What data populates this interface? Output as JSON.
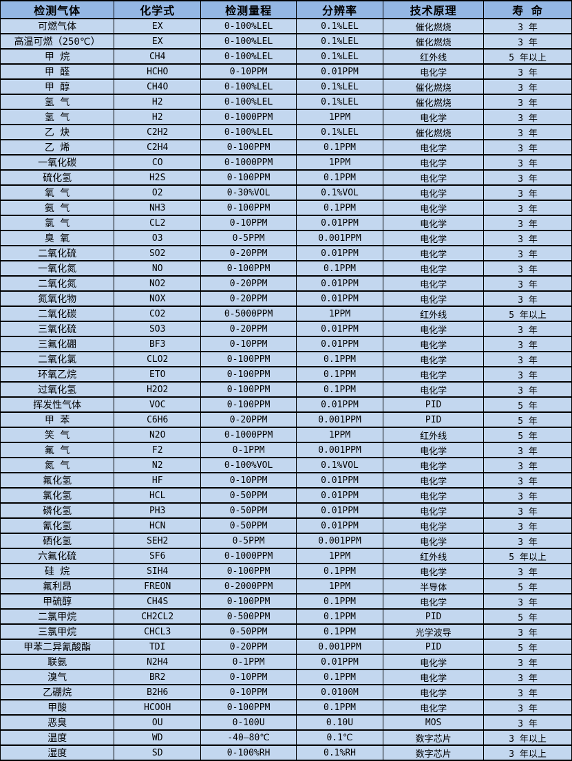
{
  "colors": {
    "header_bg": "#94b7e4",
    "row_bg": "#c3d7ef",
    "border": "#000000",
    "text": "#000000"
  },
  "table": {
    "headers": [
      "检测气体",
      "化学式",
      "检测量程",
      "分辨率",
      "技术原理",
      "寿 命"
    ],
    "rows": [
      [
        "可燃气体",
        "EX",
        "0-100%LEL",
        "0.1%LEL",
        "催化燃烧",
        "3 年"
      ],
      [
        "高温可燃（250℃）",
        "EX",
        "0-100%LEL",
        "0.1%LEL",
        "催化燃烧",
        "3 年"
      ],
      [
        "甲 烷",
        "CH4",
        "0-100%LEL",
        "0.1%LEL",
        "红外线",
        "5 年以上"
      ],
      [
        "甲 醛",
        "HCHO",
        "0-10PPM",
        "0.01PPM",
        "电化学",
        "3 年"
      ],
      [
        "甲 醇",
        "CH4O",
        "0-100%LEL",
        "0.1%LEL",
        "催化燃烧",
        "3 年"
      ],
      [
        "氢 气",
        "H2",
        "0-100%LEL",
        "0.1%LEL",
        "催化燃烧",
        "3 年"
      ],
      [
        "氢 气",
        "H2",
        "0-1000PPM",
        "1PPM",
        "电化学",
        "3 年"
      ],
      [
        "乙 炔",
        "C2H2",
        "0-100%LEL",
        "0.1%LEL",
        "催化燃烧",
        "3 年"
      ],
      [
        "乙 烯",
        "C2H4",
        "0-100PPM",
        "0.1PPM",
        "电化学",
        "3 年"
      ],
      [
        "一氧化碳",
        "CO",
        "0-1000PPM",
        "1PPM",
        "电化学",
        "3 年"
      ],
      [
        "硫化氢",
        "H2S",
        "0-100PPM",
        "0.1PPM",
        "电化学",
        "3 年"
      ],
      [
        "氧 气",
        "O2",
        "0-30%VOL",
        "0.1%VOL",
        "电化学",
        "3 年"
      ],
      [
        "氨 气",
        "NH3",
        "0-100PPM",
        "0.1PPM",
        "电化学",
        "3 年"
      ],
      [
        "氯 气",
        "CL2",
        "0-10PPM",
        "0.01PPM",
        "电化学",
        "3 年"
      ],
      [
        "臭 氧",
        "O3",
        "0-5PPM",
        "0.001PPM",
        "电化学",
        "3 年"
      ],
      [
        "二氧化硫",
        "SO2",
        "0-20PPM",
        "0.01PPM",
        "电化学",
        "3 年"
      ],
      [
        "一氧化氮",
        "NO",
        "0-100PPM",
        "0.1PPM",
        "电化学",
        "3 年"
      ],
      [
        "二氧化氮",
        "NO2",
        "0-20PPM",
        "0.01PPM",
        "电化学",
        "3 年"
      ],
      [
        "氮氧化物",
        "NOX",
        "0-20PPM",
        "0.01PPM",
        "电化学",
        "3 年"
      ],
      [
        "二氧化碳",
        "CO2",
        "0-5000PPM",
        "1PPM",
        "红外线",
        "5 年以上"
      ],
      [
        "三氧化硫",
        "SO3",
        "0-20PPM",
        "0.01PPM",
        "电化学",
        "3 年"
      ],
      [
        "三氟化硼",
        "BF3",
        "0-10PPM",
        "0.01PPM",
        "电化学",
        "3 年"
      ],
      [
        "二氧化氯",
        "CLO2",
        "0-100PPM",
        "0.1PPM",
        "电化学",
        "3 年"
      ],
      [
        "环氧乙烷",
        "ETO",
        "0-100PPM",
        "0.1PPM",
        "电化学",
        "3 年"
      ],
      [
        "过氧化氢",
        "H2O2",
        "0-100PPM",
        "0.1PPM",
        "电化学",
        "3 年"
      ],
      [
        "挥发性气体",
        "VOC",
        "0-100PPM",
        "0.01PPM",
        "PID",
        "5 年"
      ],
      [
        "甲 苯",
        "C6H6",
        "0-20PPM",
        "0.001PPM",
        "PID",
        "5 年"
      ],
      [
        "笑 气",
        "N2O",
        "0-1000PPM",
        "1PPM",
        "红外线",
        "5 年"
      ],
      [
        "氟 气",
        "F2",
        "0-1PPM",
        "0.001PPM",
        "电化学",
        "3 年"
      ],
      [
        "氮 气",
        "N2",
        "0-100%VOL",
        "0.1%VOL",
        "电化学",
        "3 年"
      ],
      [
        "氟化氢",
        "HF",
        "0-10PPM",
        "0.01PPM",
        "电化学",
        "3 年"
      ],
      [
        "氯化氢",
        "HCL",
        "0-50PPM",
        "0.01PPM",
        "电化学",
        "3 年"
      ],
      [
        "磷化氢",
        "PH3",
        "0-50PPM",
        "0.01PPM",
        "电化学",
        "3 年"
      ],
      [
        "氰化氢",
        "HCN",
        "0-50PPM",
        "0.01PPM",
        "电化学",
        "3 年"
      ],
      [
        "硒化氢",
        "SEH2",
        "0-5PPM",
        "0.001PPM",
        "电化学",
        "3 年"
      ],
      [
        "六氟化硫",
        "SF6",
        "0-1000PPM",
        "1PPM",
        "红外线",
        "5 年以上"
      ],
      [
        "硅 烷",
        "SIH4",
        "0-100PPM",
        "0.1PPM",
        "电化学",
        "3 年"
      ],
      [
        "氟利昂",
        "FREON",
        "0-2000PPM",
        "1PPM",
        "半导体",
        "5 年"
      ],
      [
        "甲硫醇",
        "CH4S",
        "0-100PPM",
        "0.1PPM",
        "电化学",
        "3 年"
      ],
      [
        "二氯甲烷",
        "CH2CL2",
        "0-500PPM",
        "0.1PPM",
        "PID",
        "5 年"
      ],
      [
        "三氯甲烷",
        "CHCL3",
        "0-50PPM",
        "0.1PPM",
        "光学波导",
        "3 年"
      ],
      [
        "甲苯二异氰酸酯",
        "TDI",
        "0-20PPM",
        "0.001PPM",
        "PID",
        "5 年"
      ],
      [
        "联氨",
        "N2H4",
        "0-1PPM",
        "0.01PPM",
        "电化学",
        "3 年"
      ],
      [
        "溴气",
        "BR2",
        "0-10PPM",
        "0.1PPM",
        "电化学",
        "3 年"
      ],
      [
        "乙硼烷",
        "B2H6",
        "0-10PPM",
        "0.0100M",
        "电化学",
        "3 年"
      ],
      [
        "甲酸",
        "HCOOH",
        "0-100PPM",
        "0.1PPM",
        "电化学",
        "3 年"
      ],
      [
        "恶臭",
        "OU",
        "0-100U",
        "0.10U",
        "MOS",
        "3 年"
      ],
      [
        "温度",
        "WD",
        "-40—80℃",
        "0.1℃",
        "数字芯片",
        "3 年以上"
      ],
      [
        "湿度",
        "SD",
        "0-100%RH",
        "0.1%RH",
        "数字芯片",
        "3 年以上"
      ]
    ]
  }
}
